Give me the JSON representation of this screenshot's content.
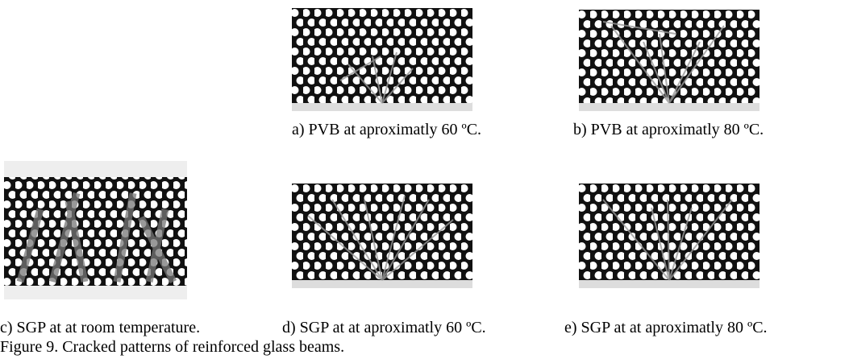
{
  "panels": [
    {
      "caption": "a) PVB at aproximatly 60 ºC."
    },
    {
      "caption": "b) PVB at aproximatly 80 ºC."
    },
    {
      "caption": "c) SGP at at room temperature."
    },
    {
      "caption": "d) SGP at at aproximatly 60 ºC."
    },
    {
      "caption": "e) SGP at at aproximatly 80 ºC."
    }
  ],
  "figure_caption": "Figure 9. Cracked patterns of reinforced glass beams."
}
